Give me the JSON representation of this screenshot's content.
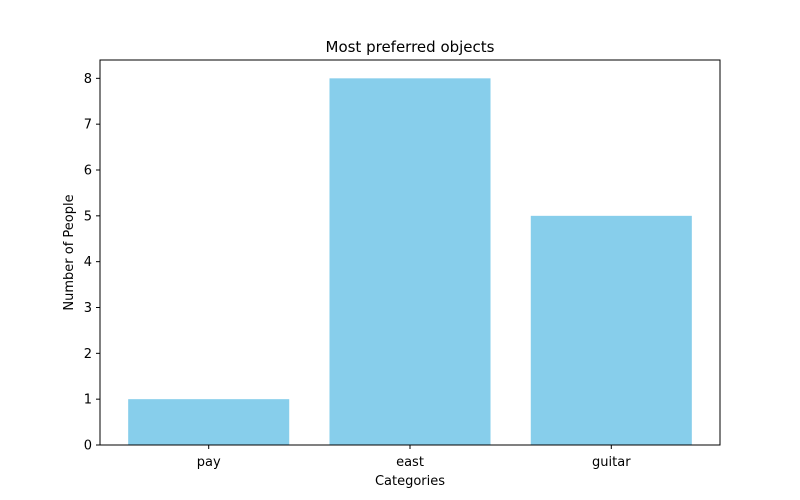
{
  "chart_data": {
    "type": "bar",
    "title": "Most preferred objects",
    "xlabel": "Categories",
    "ylabel": "Number of People",
    "categories": [
      "pay",
      "east",
      "guitar"
    ],
    "values": [
      1,
      8,
      5
    ],
    "ylim": [
      0,
      8.4
    ],
    "yticks": [
      0,
      1,
      2,
      3,
      4,
      5,
      6,
      7,
      8
    ],
    "bar_color": "#87ceeb",
    "grid": false,
    "legend": "none"
  }
}
